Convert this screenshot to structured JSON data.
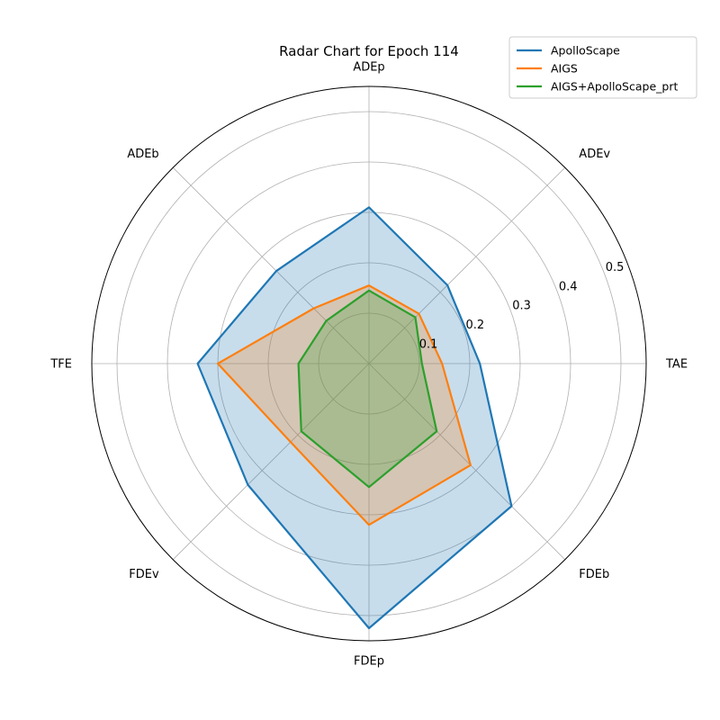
{
  "chart_data": {
    "type": "radar",
    "title": "Radar Chart for Epoch 114",
    "axes": [
      "TAE",
      "ADEv",
      "ADEp",
      "ADEb",
      "TFE",
      "FDEv",
      "FDEp",
      "FDEb"
    ],
    "rlim": [
      0,
      0.55
    ],
    "rticks": [
      0.1,
      0.2,
      0.3,
      0.4,
      0.5
    ],
    "rtick_labels": [
      "0.1",
      "0.2",
      "0.3",
      "0.4",
      "0.5"
    ],
    "grid": true,
    "legend_position": "top-right",
    "series": [
      {
        "name": "ApolloScape",
        "color": "#1f77b4",
        "values": [
          0.22,
          0.22,
          0.31,
          0.26,
          0.34,
          0.34,
          0.525,
          0.4
        ]
      },
      {
        "name": "AIGS",
        "color": "#ff7f0e",
        "values": [
          0.145,
          0.14,
          0.155,
          0.155,
          0.3,
          0.22,
          0.32,
          0.285
        ]
      },
      {
        "name": "AIGS+ApolloScape_prt",
        "color": "#2ca02c",
        "values": [
          0.105,
          0.13,
          0.145,
          0.12,
          0.14,
          0.19,
          0.245,
          0.19
        ]
      }
    ]
  }
}
